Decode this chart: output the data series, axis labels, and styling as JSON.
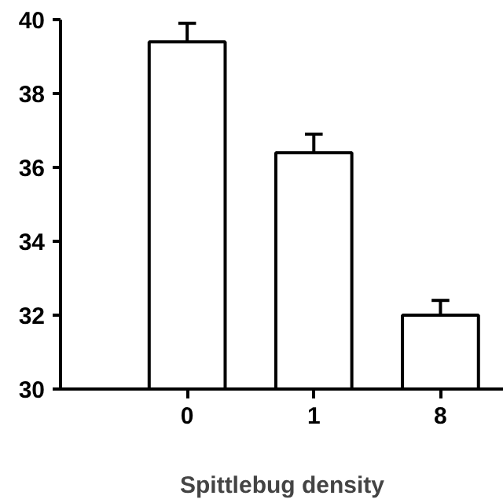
{
  "chart_data": {
    "type": "bar",
    "xlabel": "Spittlebug density",
    "categories": [
      "0",
      "1",
      "8"
    ],
    "values": [
      39.4,
      36.4,
      32.0
    ],
    "errors": [
      0.5,
      0.5,
      0.4
    ],
    "color": "#ffffff",
    "ylim": [
      30,
      40
    ],
    "yticks": [
      30,
      32,
      34,
      36,
      38,
      40
    ],
    "grid": false
  }
}
